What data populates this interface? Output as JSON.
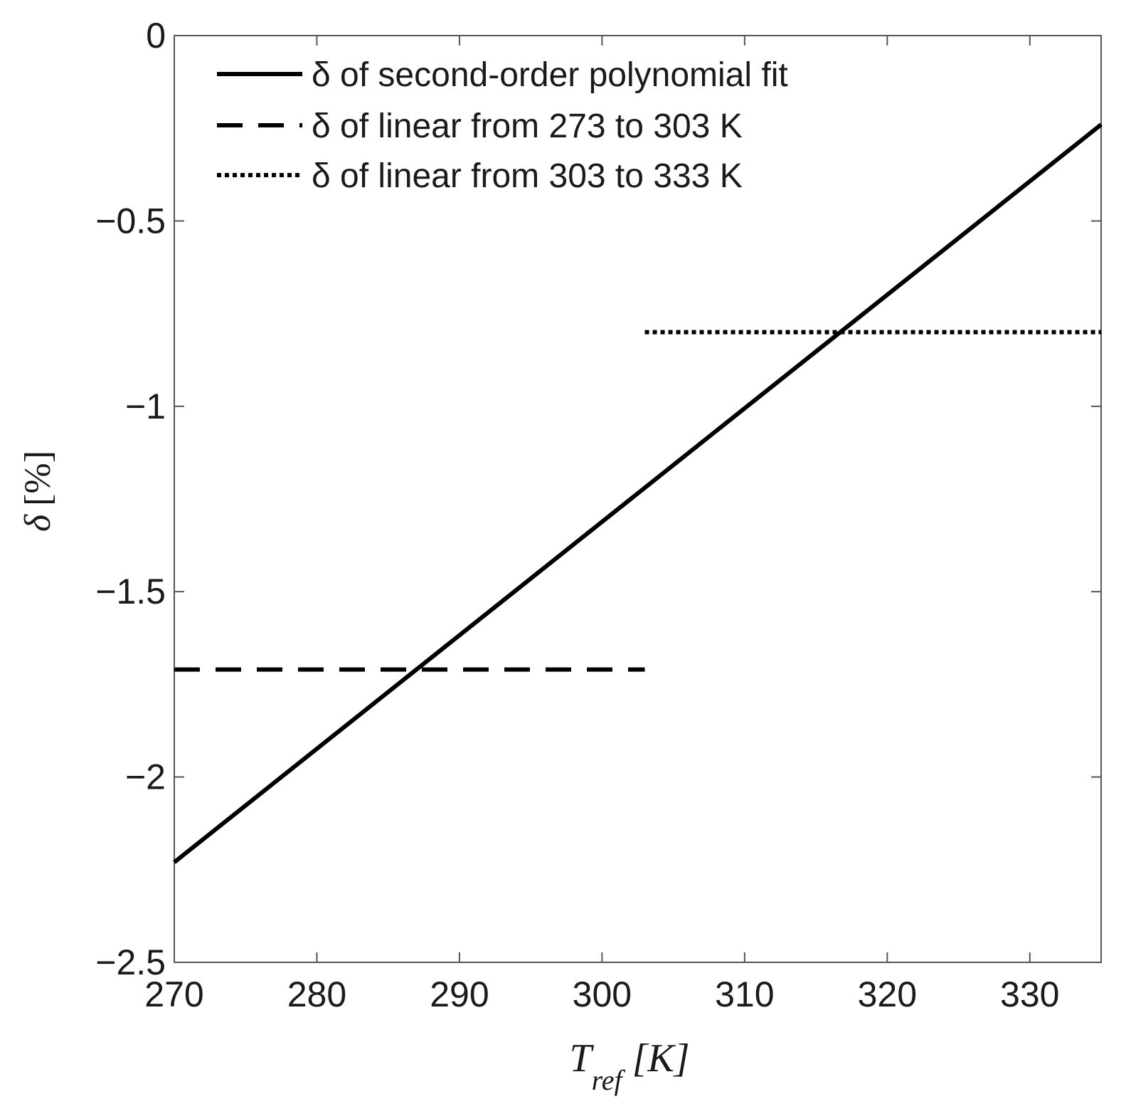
{
  "chart_data": {
    "type": "line",
    "title": "",
    "xlabel": "T_ref [K]",
    "xlabel_parts": {
      "main": "T",
      "sub": "ref",
      "unit": "[K]"
    },
    "ylabel": "δ [%]",
    "ylabel_parts": {
      "symbol": "δ",
      "unit": "[%]"
    },
    "xlim": [
      270,
      335
    ],
    "ylim": [
      -2.5,
      0
    ],
    "x_ticks": [
      270,
      280,
      290,
      300,
      310,
      320,
      330
    ],
    "y_ticks": [
      0,
      -0.5,
      -1,
      -1.5,
      -2,
      -2.5
    ],
    "x_tick_labels": [
      "270",
      "280",
      "290",
      "300",
      "310",
      "320",
      "330"
    ],
    "y_tick_labels": [
      "0",
      "−0.5",
      "−1",
      "−1.5",
      "−2",
      "−2.5"
    ],
    "grid": false,
    "legend_position": "top-left",
    "series": [
      {
        "name": "δ of second-order polynomial fit",
        "style": "solid",
        "color": "#000000",
        "x": [
          270,
          335
        ],
        "y": [
          -2.23,
          -0.24
        ]
      },
      {
        "name": "δ of linear from 273 to 303 K",
        "style": "dashed",
        "color": "#000000",
        "x": [
          270,
          303
        ],
        "y": [
          -1.71,
          -1.71
        ]
      },
      {
        "name": "δ of linear from 303 to 333 K",
        "style": "dotted",
        "color": "#000000",
        "x": [
          303,
          335
        ],
        "y": [
          -0.8,
          -0.8
        ]
      }
    ]
  }
}
